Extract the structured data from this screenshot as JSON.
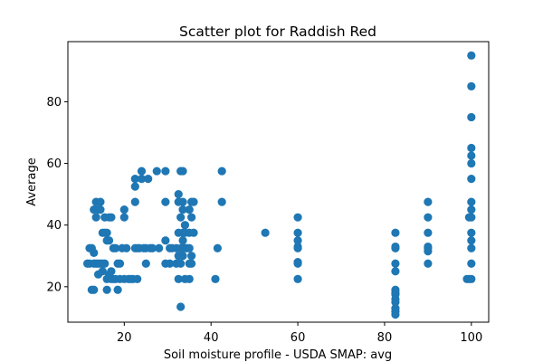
{
  "chart_data": {
    "type": "scatter",
    "title": "Scatter plot for Raddish Red",
    "xlabel": "Soil moisture profile - USDA SMAP: avg",
    "ylabel": "Average",
    "xlim": [
      7,
      104
    ],
    "ylim": [
      8.5,
      99.5
    ],
    "xticks": [
      20,
      40,
      60,
      80,
      100
    ],
    "yticks": [
      20,
      40,
      60,
      80
    ],
    "grid": false,
    "marker_color": "#1f77b4",
    "series": [
      {
        "points": [
          [
            11.5,
            27.5
          ],
          [
            12,
            27.5
          ],
          [
            12,
            32.5
          ],
          [
            12.5,
            19
          ],
          [
            12.5,
            32.5
          ],
          [
            13,
            19
          ],
          [
            13,
            27.5
          ],
          [
            13,
            31
          ],
          [
            13,
            45
          ],
          [
            13.5,
            47.5
          ],
          [
            13.5,
            42.5
          ],
          [
            13.5,
            27.5
          ],
          [
            14,
            27.5
          ],
          [
            14,
            24
          ],
          [
            14,
            45
          ],
          [
            14.5,
            27.5
          ],
          [
            14.5,
            47.5
          ],
          [
            14.5,
            45
          ],
          [
            15,
            27.5
          ],
          [
            15,
            25
          ],
          [
            15,
            37.5
          ],
          [
            15.5,
            27.5
          ],
          [
            15.5,
            37.5
          ],
          [
            15.5,
            42.5
          ],
          [
            16,
            22.5
          ],
          [
            16,
            19
          ],
          [
            16,
            35
          ],
          [
            16,
            37.5
          ],
          [
            16.5,
            24
          ],
          [
            16.5,
            42.5
          ],
          [
            16.5,
            35
          ],
          [
            17,
            22.5
          ],
          [
            17,
            42.5
          ],
          [
            17,
            25
          ],
          [
            17.5,
            22.5
          ],
          [
            17.5,
            32.5
          ],
          [
            18,
            22.5
          ],
          [
            18,
            32.5
          ],
          [
            18.5,
            27.5
          ],
          [
            18.5,
            19
          ],
          [
            19,
            22.5
          ],
          [
            19,
            27.5
          ],
          [
            19.5,
            32.5
          ],
          [
            20,
            42.5
          ],
          [
            20,
            45
          ],
          [
            20,
            22.5
          ],
          [
            20.5,
            32.5
          ],
          [
            21,
            22.5
          ],
          [
            21.5,
            22.5
          ],
          [
            22,
            22.5
          ],
          [
            22.5,
            32.5
          ],
          [
            22.5,
            47.5
          ],
          [
            22.5,
            52.5
          ],
          [
            22.5,
            55
          ],
          [
            23,
            32.5
          ],
          [
            23,
            22.5
          ],
          [
            23.5,
            32.5
          ],
          [
            24,
            55
          ],
          [
            24,
            57.5
          ],
          [
            24.5,
            32.5
          ],
          [
            25,
            32.5
          ],
          [
            25,
            27.5
          ],
          [
            25.5,
            55
          ],
          [
            26,
            32.5
          ],
          [
            26.5,
            32.5
          ],
          [
            27.5,
            57.5
          ],
          [
            28,
            32.5
          ],
          [
            29.5,
            47.5
          ],
          [
            29.5,
            57.5
          ],
          [
            29.5,
            35
          ],
          [
            29.5,
            27.5
          ],
          [
            30.5,
            27.5
          ],
          [
            30.5,
            32.5
          ],
          [
            31,
            32.5
          ],
          [
            32,
            27.5
          ],
          [
            32,
            32.5
          ],
          [
            32.5,
            37.5
          ],
          [
            32.5,
            30
          ],
          [
            32.5,
            50
          ],
          [
            32.5,
            22.5
          ],
          [
            32.5,
            47.5
          ],
          [
            33,
            57.5
          ],
          [
            33,
            42.5
          ],
          [
            33,
            32.5
          ],
          [
            33,
            13.5
          ],
          [
            33,
            27.5
          ],
          [
            33.5,
            57.5
          ],
          [
            33.5,
            47.5
          ],
          [
            33.5,
            45
          ],
          [
            33.5,
            37.5
          ],
          [
            33.5,
            35
          ],
          [
            33.5,
            32.5
          ],
          [
            33.5,
            30
          ],
          [
            34,
            40
          ],
          [
            34,
            32.5
          ],
          [
            34,
            37.5
          ],
          [
            34,
            22.5
          ],
          [
            34.5,
            32.5
          ],
          [
            35,
            22.5
          ],
          [
            35,
            27.5
          ],
          [
            35,
            32.5
          ],
          [
            35,
            37.5
          ],
          [
            35,
            45
          ],
          [
            35.5,
            47.5
          ],
          [
            35.5,
            42.5
          ],
          [
            35.5,
            30
          ],
          [
            35.5,
            27.5
          ],
          [
            36,
            47.5
          ],
          [
            36,
            37.5
          ],
          [
            41,
            22.5
          ],
          [
            41.5,
            32.5
          ],
          [
            42.5,
            57.5
          ],
          [
            42.5,
            47.5
          ],
          [
            52.5,
            37.5
          ],
          [
            60,
            42.5
          ],
          [
            60,
            37.5
          ],
          [
            60,
            35
          ],
          [
            60,
            33
          ],
          [
            60,
            32.5
          ],
          [
            60,
            28
          ],
          [
            60,
            27.5
          ],
          [
            60,
            22.5
          ],
          [
            82.5,
            37.5
          ],
          [
            82.5,
            33
          ],
          [
            82.5,
            32.5
          ],
          [
            82.5,
            27.5
          ],
          [
            82.5,
            25
          ],
          [
            82.5,
            19
          ],
          [
            82.5,
            18
          ],
          [
            82.5,
            17.5
          ],
          [
            82.5,
            16
          ],
          [
            82.5,
            15
          ],
          [
            82.5,
            13
          ],
          [
            82.5,
            12
          ],
          [
            82.5,
            11
          ],
          [
            90,
            47.5
          ],
          [
            90,
            42.5
          ],
          [
            90,
            37.5
          ],
          [
            90,
            33
          ],
          [
            90,
            32.5
          ],
          [
            90,
            31.5
          ],
          [
            90,
            27.5
          ],
          [
            99,
            22.5
          ],
          [
            99.5,
            22.5
          ],
          [
            99.5,
            42.5
          ],
          [
            100,
            95
          ],
          [
            100,
            85
          ],
          [
            100,
            75
          ],
          [
            100,
            65
          ],
          [
            100,
            62.5
          ],
          [
            100,
            60
          ],
          [
            100,
            55
          ],
          [
            100,
            47.5
          ],
          [
            100,
            45
          ],
          [
            100,
            42.5
          ],
          [
            100,
            37.5
          ],
          [
            100,
            35
          ],
          [
            100,
            32.5
          ],
          [
            100,
            27.5
          ],
          [
            100,
            22.5
          ]
        ]
      }
    ]
  }
}
